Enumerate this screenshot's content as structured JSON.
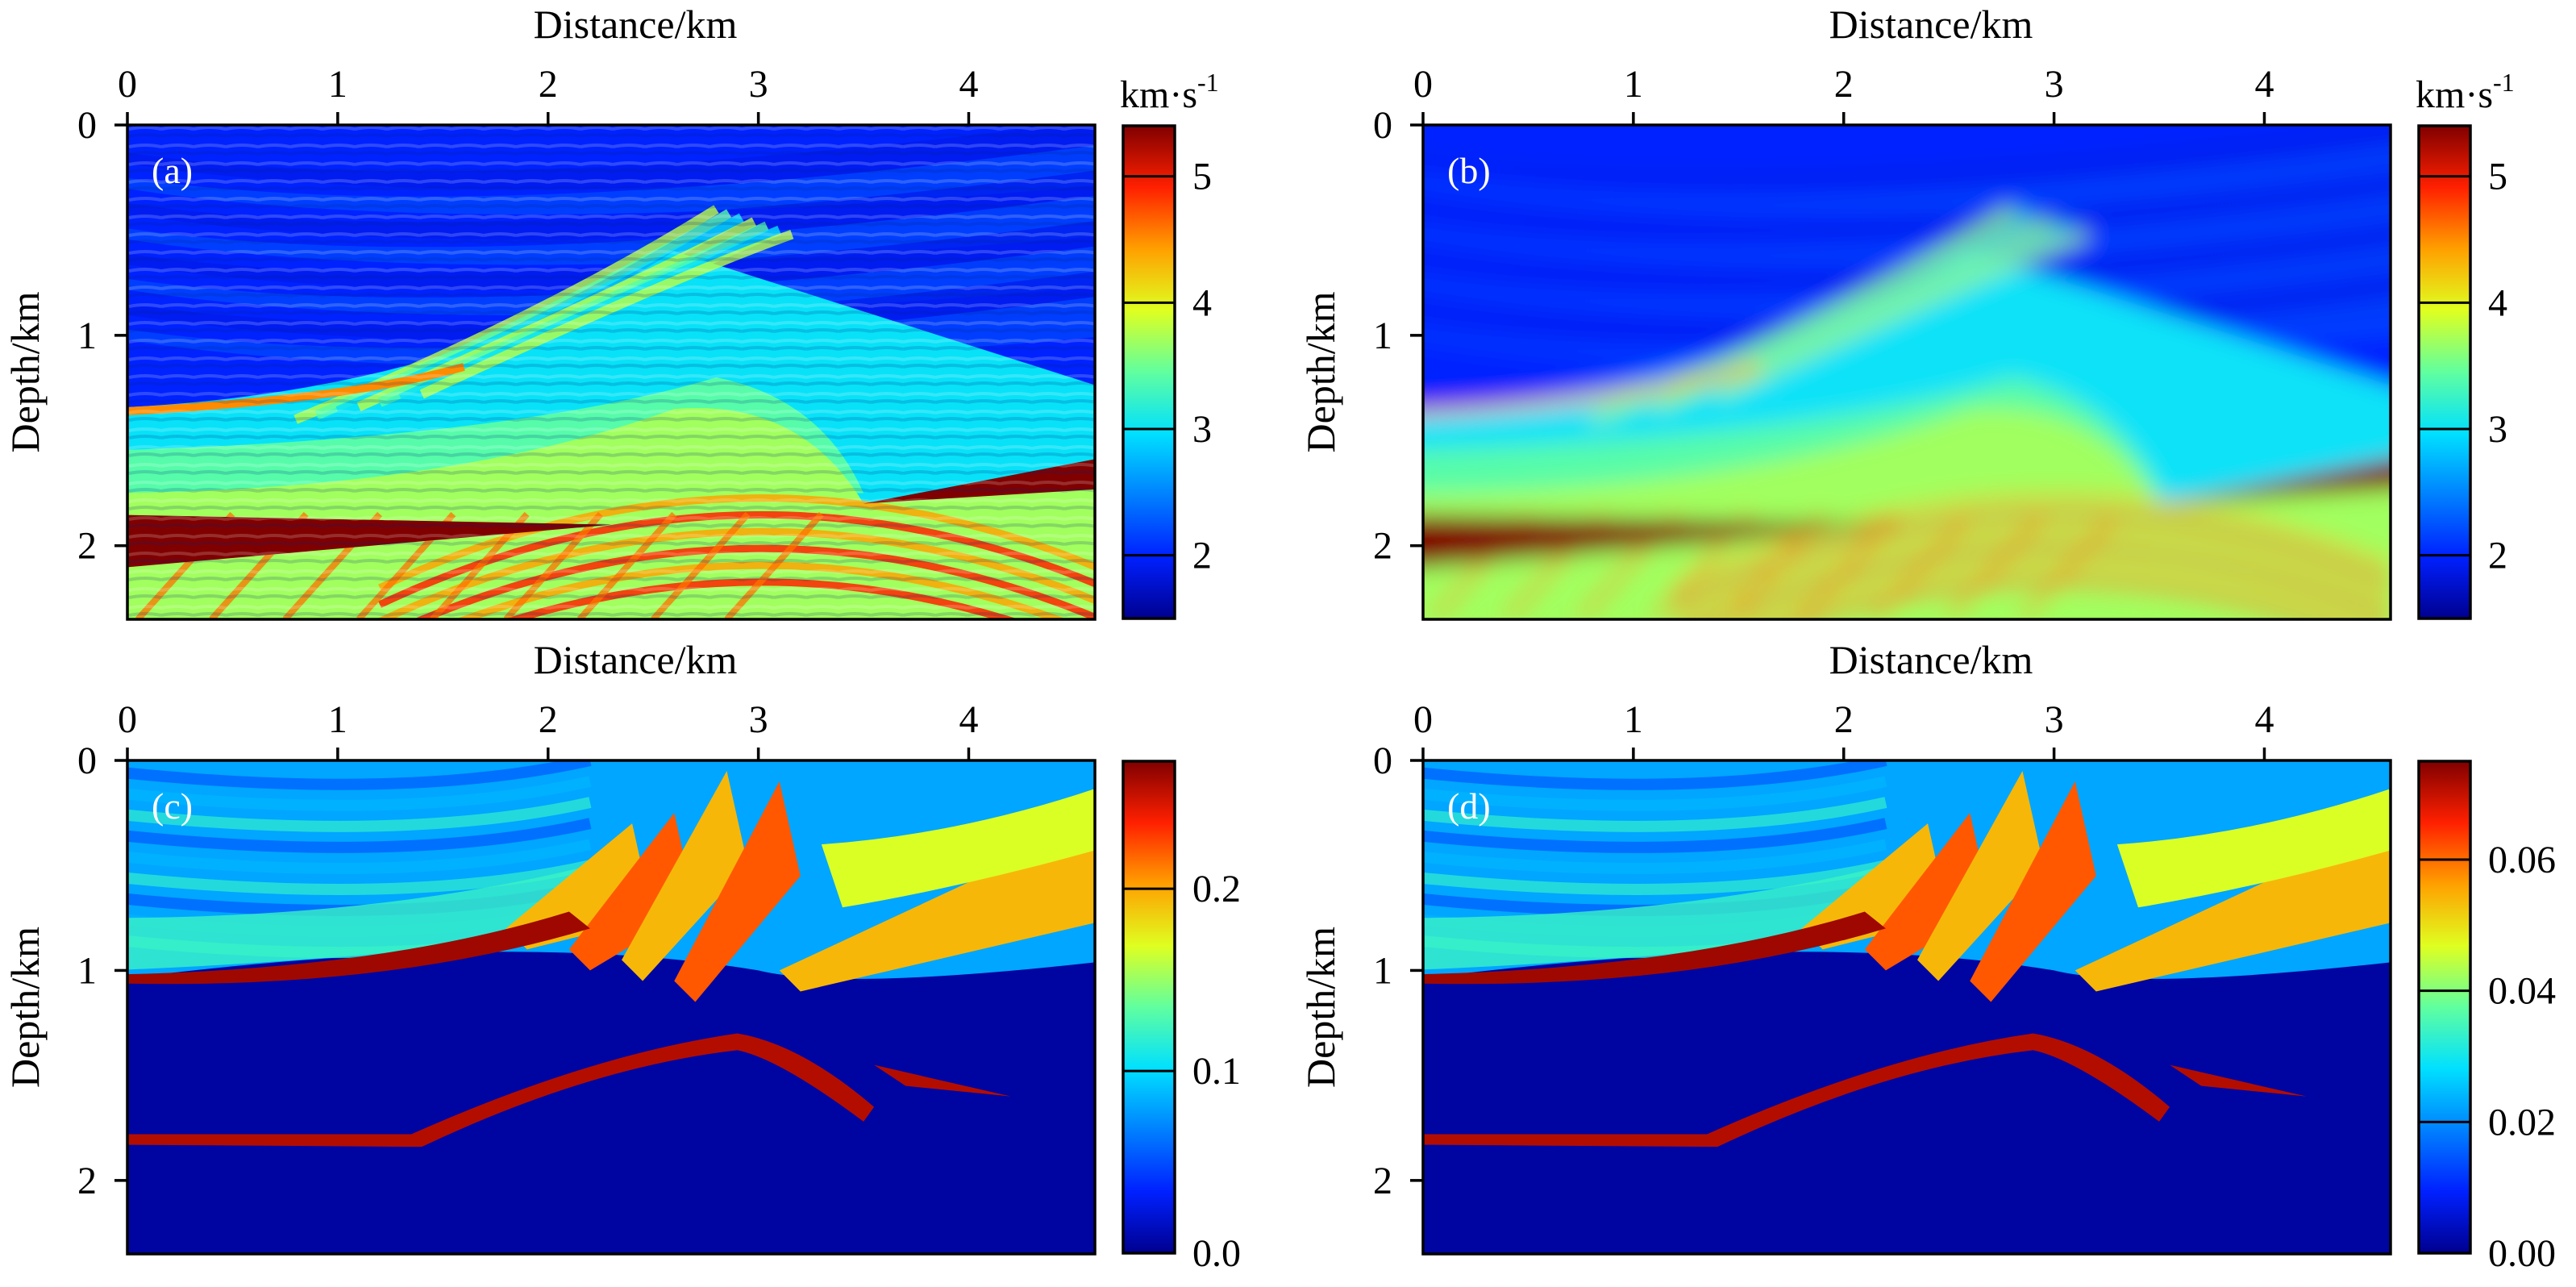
{
  "chart_data": [
    {
      "id": "a",
      "type": "heatmap",
      "panel_label": "(a)",
      "title": "Distance/km",
      "xlabel": "Distance/km",
      "ylabel": "Depth/km",
      "xlim": [
        0,
        4.6
      ],
      "ylim": [
        0,
        2.35
      ],
      "x_ticks": [
        "0",
        "1",
        "2",
        "3",
        "4"
      ],
      "y_ticks": [
        "0",
        "1",
        "2"
      ],
      "colorbar": {
        "label": "km·s",
        "label_sup": "-1",
        "min": 1.5,
        "max": 5.4,
        "ticks": [
          "2",
          "3",
          "4",
          "5"
        ]
      },
      "description_values": {
        "background_velocity_shallow": 2.0,
        "high_velocity_layer": 5.4,
        "middle_layers": 3.5
      }
    },
    {
      "id": "b",
      "type": "heatmap",
      "panel_label": "(b)",
      "title": "Distance/km",
      "xlabel": "Distance/km",
      "ylabel": "Depth/km",
      "xlim": [
        0,
        4.6
      ],
      "ylim": [
        0,
        2.35
      ],
      "x_ticks": [
        "0",
        "1",
        "2",
        "3",
        "4"
      ],
      "y_ticks": [
        "0",
        "1",
        "2"
      ],
      "colorbar": {
        "label": "km·s",
        "label_sup": "-1",
        "min": 1.5,
        "max": 5.4,
        "ticks": [
          "2",
          "3",
          "4",
          "5"
        ]
      }
    },
    {
      "id": "c",
      "type": "heatmap",
      "panel_label": "(c)",
      "title": "Distance/km",
      "xlabel": "Distance/km",
      "ylabel": "Depth/km",
      "xlim": [
        0,
        4.6
      ],
      "ylim": [
        0,
        2.35
      ],
      "x_ticks": [
        "0",
        "1",
        "2",
        "3",
        "4"
      ],
      "y_ticks": [
        "0",
        "1",
        "2"
      ],
      "colorbar": {
        "min": 0.0,
        "max": 0.27,
        "ticks": [
          "0.0",
          "0.1",
          "0.2"
        ]
      }
    },
    {
      "id": "d",
      "type": "heatmap",
      "panel_label": "(d)",
      "title": "Distance/km",
      "xlabel": "Distance/km",
      "ylabel": "Depth/km",
      "xlim": [
        0,
        4.6
      ],
      "ylim": [
        0,
        2.35
      ],
      "x_ticks": [
        "0",
        "1",
        "2",
        "3",
        "4"
      ],
      "y_ticks": [
        "0",
        "1",
        "2"
      ],
      "colorbar": {
        "min": 0.0,
        "max": 0.075,
        "ticks": [
          "0.00",
          "0.02",
          "0.04",
          "0.06"
        ]
      }
    }
  ],
  "colormap": [
    "#00008f",
    "#0020ff",
    "#0080ff",
    "#00e0ff",
    "#60ff9f",
    "#dfff20",
    "#ffa000",
    "#ff2000",
    "#800000"
  ]
}
